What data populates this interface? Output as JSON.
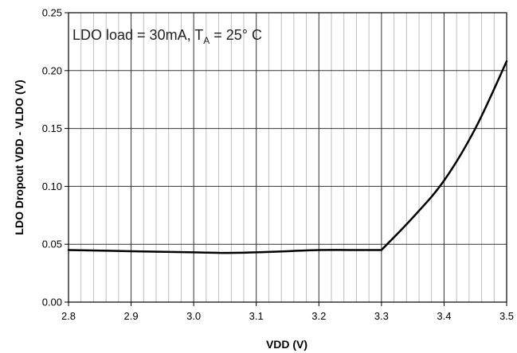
{
  "chart_data": {
    "type": "line",
    "title": "",
    "xlabel": "VDD (V)",
    "ylabel": "LDO Dropout VDD - VLDO (V)",
    "xlim": [
      2.8,
      3.5
    ],
    "ylim": [
      0,
      0.25
    ],
    "xticks": [
      "2.8",
      "2.9",
      "3.0",
      "3.1",
      "3.2",
      "3.3",
      "3.4",
      "3.5"
    ],
    "yticks": [
      "0.00",
      "0.05",
      "0.10",
      "0.15",
      "0.20",
      "0.25"
    ],
    "grid": true,
    "minor_x_step": 0.02,
    "annotation": {
      "prefix": "LDO load = 30mA, T",
      "subscript": "A",
      "suffix": " = 25° C"
    },
    "series": [
      {
        "x": [
          2.8,
          2.9,
          3.0,
          3.05,
          3.1,
          3.15,
          3.2,
          3.25,
          3.3,
          3.35,
          3.4,
          3.45,
          3.5
        ],
        "y": [
          0.045,
          0.044,
          0.043,
          0.0425,
          0.043,
          0.044,
          0.045,
          0.045,
          0.045,
          0.073,
          0.105,
          0.15,
          0.208
        ]
      }
    ],
    "colors": {
      "line": "#000000",
      "grid_major": "#333333",
      "grid_minor": "#bdbdbd",
      "frame": "#000000"
    }
  }
}
